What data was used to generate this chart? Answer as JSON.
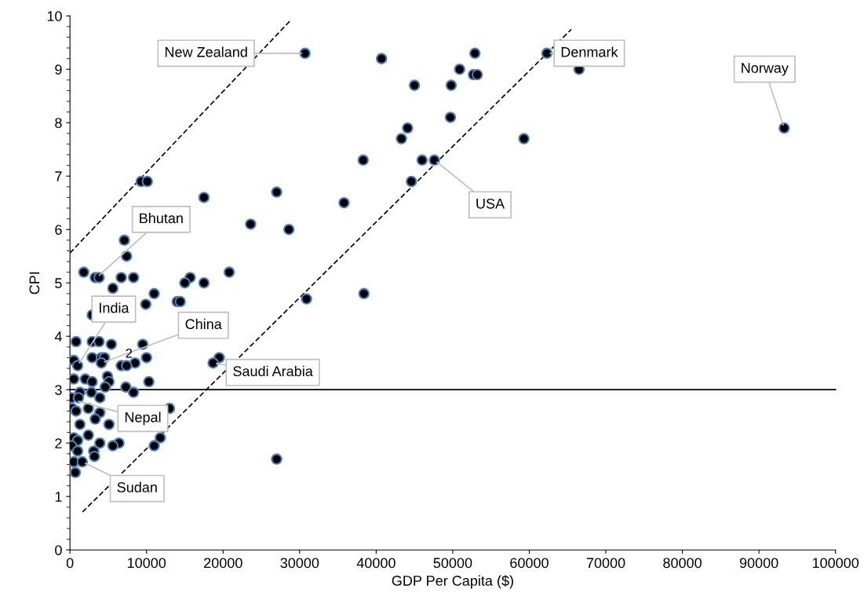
{
  "chart_data": {
    "type": "scatter",
    "xlabel": "GDP Per Capita ($)",
    "ylabel": "CPI",
    "xlim": [
      0,
      100000
    ],
    "xticks": [
      0,
      10000,
      20000,
      30000,
      40000,
      50000,
      60000,
      70000,
      80000,
      90000,
      100000
    ],
    "ylim": [
      0,
      10
    ],
    "yticks": [
      0,
      1,
      2,
      3,
      4,
      5,
      6,
      7,
      8,
      9,
      10
    ],
    "grid": false,
    "marker": "circle",
    "series": [
      {
        "type": "scatter",
        "color": "#000000",
        "x": [
          30700,
          40700,
          52900,
          50900,
          52700,
          53200,
          45000,
          49800,
          49700,
          44100,
          43300,
          38300,
          46000,
          47600,
          44600,
          59300,
          62300,
          66500,
          93300,
          27000,
          35800,
          23600,
          28600,
          30900,
          38400,
          27000,
          17500,
          20800,
          17500,
          15700,
          15000,
          9300,
          10100,
          7100,
          7400,
          1800,
          3300,
          3800,
          6700,
          8300,
          5600,
          11000,
          9900,
          14000,
          14400,
          2900,
          800,
          2900,
          3800,
          5400,
          9500,
          10000,
          8500,
          6700,
          7400,
          19500,
          18700,
          2900,
          4100,
          4500,
          4100,
          500,
          1000,
          4900,
          2000,
          2900,
          5100,
          500,
          10300,
          7300,
          8300,
          4600,
          3900,
          2800,
          1300,
          200,
          1100,
          13000,
          300,
          800,
          2400,
          3900,
          3300,
          5100,
          1300,
          11800,
          2400,
          500,
          3900,
          6400,
          5600,
          11000,
          1000,
          200,
          1000,
          3100,
          3200,
          500,
          1600,
          700
        ],
        "values": [
          9.3,
          9.2,
          9.3,
          9.0,
          8.9,
          8.9,
          8.7,
          8.7,
          8.1,
          7.9,
          7.7,
          7.3,
          7.3,
          7.3,
          6.9,
          7.7,
          9.3,
          9.0,
          7.9,
          6.7,
          6.5,
          6.1,
          6.0,
          4.7,
          4.8,
          1.7,
          6.6,
          5.2,
          5.0,
          5.1,
          5.0,
          6.9,
          6.9,
          5.8,
          5.5,
          5.2,
          5.1,
          5.1,
          5.1,
          5.1,
          4.9,
          4.8,
          4.6,
          4.65,
          4.65,
          4.4,
          3.9,
          3.9,
          3.9,
          3.85,
          3.85,
          3.6,
          3.5,
          3.45,
          3.45,
          3.6,
          3.5,
          3.6,
          3.6,
          3.6,
          3.5,
          3.55,
          3.45,
          3.25,
          3.2,
          3.15,
          3.15,
          3.2,
          3.15,
          3.05,
          2.95,
          3.05,
          2.85,
          2.95,
          2.95,
          2.85,
          2.85,
          2.65,
          2.65,
          2.6,
          2.65,
          2.57,
          2.45,
          2.35,
          2.35,
          2.1,
          2.15,
          2.1,
          2.0,
          2.0,
          1.95,
          1.95,
          2.05,
          1.95,
          1.85,
          1.85,
          1.75,
          1.65,
          1.65,
          1.45
        ]
      },
      {
        "type": "line",
        "color": "#000000",
        "line_style": "dashed",
        "marker": "none",
        "x": [
          0,
          28900
        ],
        "values": [
          5.56,
          9.93
        ]
      },
      {
        "type": "line",
        "color": "#000000",
        "line_style": "dashed",
        "marker": "none",
        "x": [
          1640,
          65500
        ],
        "values": [
          0.71,
          9.75
        ]
      }
    ],
    "ref_lines": [
      {
        "axis": "y",
        "value": 3,
        "color": "#000000",
        "line_style": "solid"
      }
    ],
    "annotations": [
      {
        "text": "New Zealand",
        "x": 30700,
        "y": 9.3
      },
      {
        "text": "Denmark",
        "x": 62300,
        "y": 9.3
      },
      {
        "text": "Norway",
        "x": 93300,
        "y": 7.9
      },
      {
        "text": "USA",
        "x": 47600,
        "y": 7.3
      },
      {
        "text": "Bhutan",
        "x": 3500,
        "y": 5.1
      },
      {
        "text": "India",
        "x": 1000,
        "y": 3.45
      },
      {
        "text": "China",
        "x": 4100,
        "y": 3.5
      },
      {
        "text": "Saudi Arabia",
        "x": 18700,
        "y": 3.5
      },
      {
        "text": "Nepal",
        "x": 700,
        "y": 2.8
      },
      {
        "text": "Sudan",
        "x": 1600,
        "y": 1.65
      },
      {
        "text": "2",
        "x": 6800,
        "y": 3.6
      }
    ]
  }
}
